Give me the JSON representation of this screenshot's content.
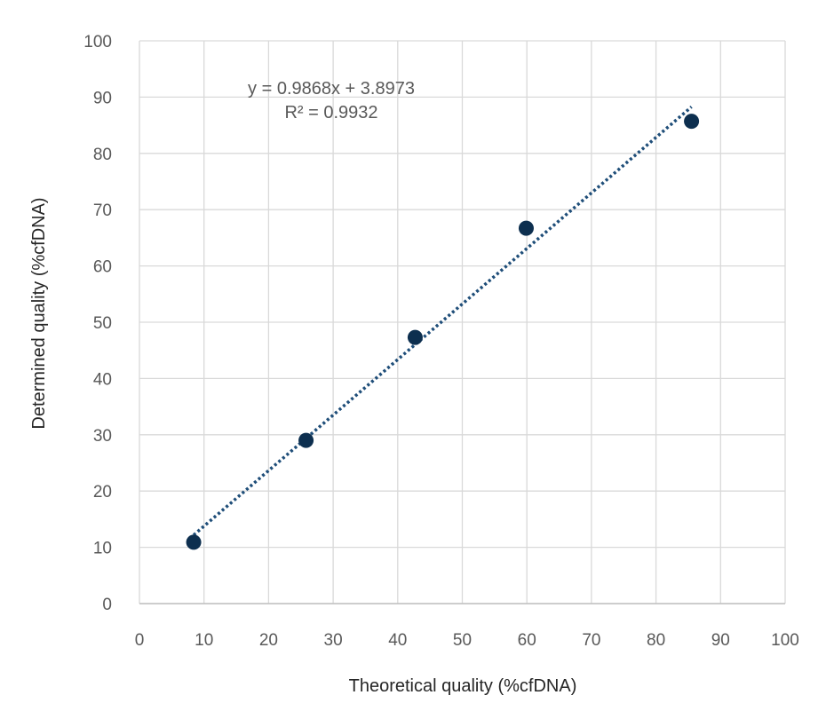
{
  "chart_data": {
    "type": "scatter",
    "xlabel": "Theoretical quality (%cfDNA)",
    "ylabel": "Determined quality (%cfDNA)",
    "xlim": [
      0,
      100
    ],
    "ylim": [
      0,
      100
    ],
    "x_ticks": [
      0,
      10,
      20,
      30,
      40,
      50,
      60,
      70,
      80,
      90,
      100
    ],
    "y_ticks": [
      0,
      10,
      20,
      30,
      40,
      50,
      60,
      70,
      80,
      90,
      100
    ],
    "grid": true,
    "series": [
      {
        "x": [
          8.4,
          25.8,
          42.7,
          59.9,
          85.5
        ],
        "y": [
          10.9,
          29.0,
          47.3,
          66.7,
          85.7
        ],
        "color": "#0d2f4f"
      }
    ],
    "trendline": {
      "type": "linear",
      "style": "dotted",
      "color": "#1f4e79",
      "slope": 0.9868,
      "intercept": 3.8973,
      "x_range": [
        8.4,
        85.5
      ],
      "equation": "y = 0.9868x + 3.8973",
      "r_squared": "R² = 0.9932"
    }
  }
}
